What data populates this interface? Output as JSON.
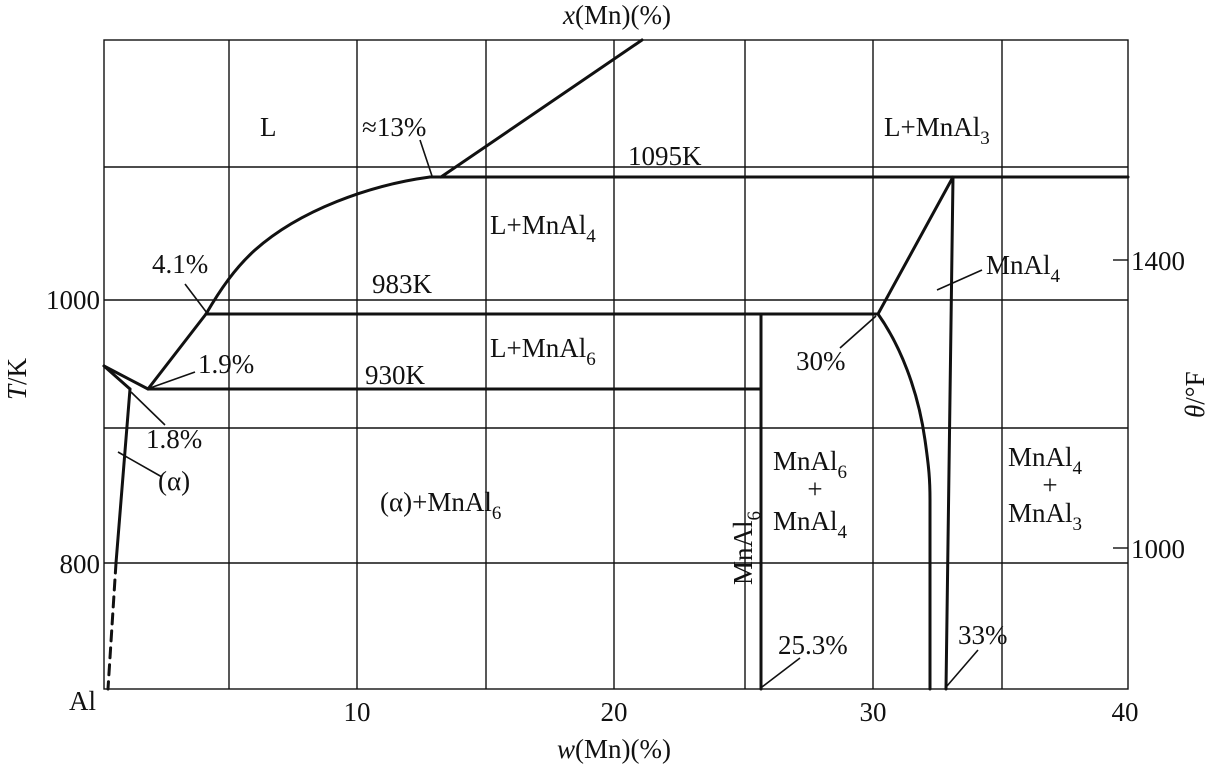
{
  "top_axis": {
    "label_prefix": "x",
    "label": "(Mn)(%)"
  },
  "bottom_axis": {
    "label_prefix": "w",
    "label": "(Mn)(%)",
    "ticks": [
      "10",
      "20",
      "30",
      "40"
    ]
  },
  "left_axis": {
    "label_prefix": "T",
    "label": "/K",
    "ticks": [
      "1000",
      "800"
    ],
    "origin_label": "Al"
  },
  "right_axis": {
    "label_prefix": "θ",
    "label": "/°F",
    "ticks": [
      "1400",
      "1000"
    ]
  },
  "regions": {
    "L": "L",
    "L_MnAl3": {
      "main": "L+MnAl",
      "sub": "3"
    },
    "L_MnAl4": {
      "main": "L+MnAl",
      "sub": "4"
    },
    "L_MnAl6": {
      "main": "L+MnAl",
      "sub": "6"
    },
    "MnAl4": {
      "main": "MnAl",
      "sub": "4"
    },
    "alpha_MnAl6": {
      "main": "(α)+MnAl",
      "sub": "6"
    },
    "alpha": "(α)",
    "MnAl6_MnAl4": {
      "line1": "MnAl",
      "sub1": "6",
      "plus": "+",
      "line2": "MnAl",
      "sub2": "4"
    },
    "MnAl4_MnAl3": {
      "line1": "MnAl",
      "sub1": "4",
      "plus": "+",
      "line2": "MnAl",
      "sub2": "3"
    },
    "MnAl6_vertical": {
      "main": "MnAl",
      "sub": "6"
    }
  },
  "annotations": {
    "temp_1095": "1095K",
    "temp_983": "983K",
    "temp_930": "930K",
    "pct_13": "≈13%",
    "pct_4_1": "4.1%",
    "pct_1_9": "1.9%",
    "pct_1_8": "1.8%",
    "pct_30": "30%",
    "pct_25_3": "25.3%",
    "pct_33": "33%"
  }
}
